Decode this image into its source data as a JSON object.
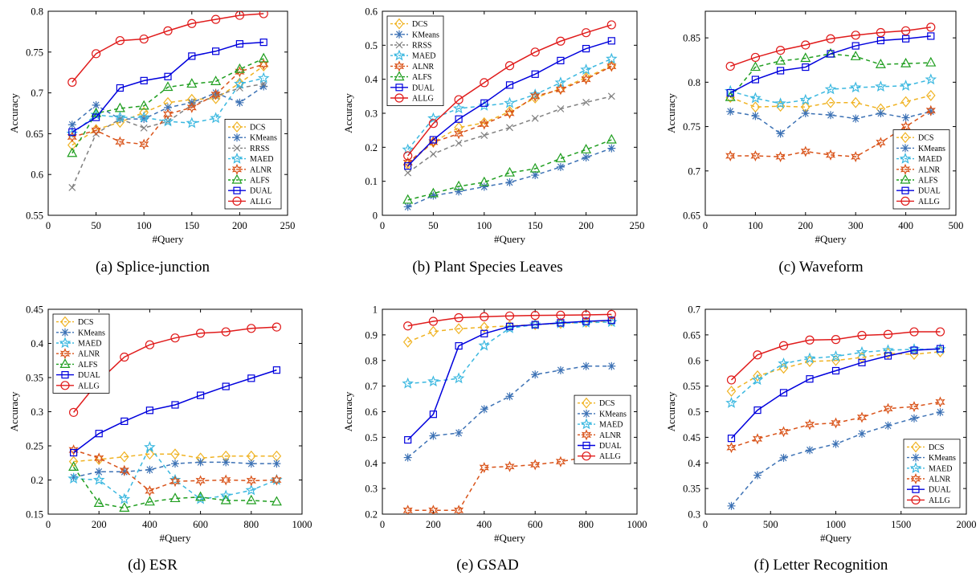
{
  "styles": {
    "DCS": {
      "color": "#f0b323",
      "marker": "diamond",
      "dash": "5,4"
    },
    "KMeans": {
      "color": "#3d72b5",
      "marker": "asterisk",
      "dash": "5,4"
    },
    "RRSS": {
      "color": "#808080",
      "marker": "x",
      "dash": "5,4"
    },
    "MAED": {
      "color": "#3bb8e0",
      "marker": "star",
      "dash": "5,4"
    },
    "ALNR": {
      "color": "#d95319",
      "marker": "hexstar",
      "dash": "5,4"
    },
    "ALFS": {
      "color": "#1f9e1f",
      "marker": "triangle",
      "dash": "5,4"
    },
    "DUAL": {
      "color": "#0000dd",
      "marker": "square",
      "dash": ""
    },
    "ALLG": {
      "color": "#e01b1b",
      "marker": "circle",
      "dash": ""
    }
  },
  "chart_data": [
    {
      "id": "a",
      "type": "line",
      "caption": "(a)  Splice-junction",
      "xlabel": "#Query",
      "ylabel": "Accuracy",
      "xlim": [
        0,
        250
      ],
      "ylim": [
        0.55,
        0.8
      ],
      "xticks": [
        0,
        50,
        100,
        150,
        200,
        250
      ],
      "xtick_labels": [
        "0",
        "50",
        "100",
        "150",
        "200",
        "250"
      ],
      "yticks": [
        0.55,
        0.6,
        0.65,
        0.7,
        0.75,
        0.8
      ],
      "ytick_labels": [
        "0.55",
        "0.6",
        "0.65",
        "0.7",
        "0.75",
        "0.8"
      ],
      "legend_position": "bottom-right",
      "x": [
        25,
        50,
        75,
        100,
        125,
        150,
        175,
        200,
        225
      ],
      "series": [
        {
          "name": "DCS",
          "values": [
            0.636,
            0.655,
            0.664,
            0.676,
            0.688,
            0.692,
            0.693,
            0.712,
            0.733
          ]
        },
        {
          "name": "KMeans",
          "values": [
            0.661,
            0.685,
            0.668,
            0.668,
            0.682,
            0.688,
            0.7,
            0.688,
            0.708
          ]
        },
        {
          "name": "RRSS",
          "values": [
            0.584,
            0.65,
            0.668,
            0.657,
            0.665,
            0.685,
            0.696,
            0.706,
            0.711
          ]
        },
        {
          "name": "MAED",
          "values": [
            0.65,
            0.673,
            0.67,
            0.67,
            0.665,
            0.663,
            0.669,
            0.711,
            0.718
          ]
        },
        {
          "name": "ALNR",
          "values": [
            0.646,
            0.654,
            0.64,
            0.637,
            0.674,
            0.682,
            0.698,
            0.726,
            0.735
          ]
        },
        {
          "name": "ALFS",
          "values": [
            0.626,
            0.675,
            0.681,
            0.684,
            0.707,
            0.711,
            0.714,
            0.729,
            0.742
          ]
        },
        {
          "name": "DUAL",
          "values": [
            0.652,
            0.67,
            0.706,
            0.715,
            0.72,
            0.745,
            0.751,
            0.76,
            0.762
          ]
        },
        {
          "name": "ALLG",
          "values": [
            0.713,
            0.748,
            0.764,
            0.766,
            0.776,
            0.785,
            0.79,
            0.795,
            0.797
          ]
        }
      ]
    },
    {
      "id": "b",
      "type": "line",
      "caption": "(b)  Plant Species Leaves",
      "xlabel": "#Query",
      "ylabel": "Accuracy",
      "xlim": [
        0,
        250
      ],
      "ylim": [
        0,
        0.6
      ],
      "xticks": [
        0,
        50,
        100,
        150,
        200,
        250
      ],
      "xtick_labels": [
        "0",
        "50",
        "100",
        "150",
        "200",
        "250"
      ],
      "yticks": [
        0,
        0.1,
        0.2,
        0.3,
        0.4,
        0.5,
        0.6
      ],
      "ytick_labels": [
        "0",
        "0.1",
        "0.2",
        "0.3",
        "0.4",
        "0.5",
        "0.6"
      ],
      "legend_position": "top-left",
      "x": [
        25,
        50,
        75,
        100,
        125,
        150,
        175,
        200,
        225
      ],
      "series": [
        {
          "name": "DCS",
          "values": [
            0.15,
            0.215,
            0.258,
            0.272,
            0.305,
            0.345,
            0.372,
            0.405,
            0.44
          ]
        },
        {
          "name": "KMeans",
          "values": [
            0.025,
            0.058,
            0.07,
            0.084,
            0.097,
            0.118,
            0.142,
            0.17,
            0.197
          ]
        },
        {
          "name": "RRSS",
          "values": [
            0.125,
            0.18,
            0.212,
            0.235,
            0.258,
            0.285,
            0.313,
            0.332,
            0.35
          ]
        },
        {
          "name": "MAED",
          "values": [
            0.193,
            0.285,
            0.314,
            0.322,
            0.33,
            0.355,
            0.39,
            0.428,
            0.46
          ]
        },
        {
          "name": "ALNR",
          "values": [
            0.155,
            0.215,
            0.24,
            0.268,
            0.3,
            0.35,
            0.37,
            0.4,
            0.438
          ]
        },
        {
          "name": "ALFS",
          "values": [
            0.045,
            0.064,
            0.085,
            0.097,
            0.125,
            0.137,
            0.167,
            0.193,
            0.222
          ]
        },
        {
          "name": "DUAL",
          "values": [
            0.145,
            0.222,
            0.283,
            0.33,
            0.383,
            0.415,
            0.455,
            0.49,
            0.513
          ]
        },
        {
          "name": "ALLG",
          "values": [
            0.175,
            0.27,
            0.34,
            0.39,
            0.44,
            0.48,
            0.512,
            0.537,
            0.56
          ]
        }
      ]
    },
    {
      "id": "c",
      "type": "line",
      "caption": "(c)  Waveform",
      "xlabel": "#Query",
      "ylabel": "Accuracy",
      "xlim": [
        0,
        500
      ],
      "ylim": [
        0.65,
        0.88
      ],
      "xticks": [
        0,
        100,
        200,
        300,
        400,
        500
      ],
      "xtick_labels": [
        "0",
        "100",
        "200",
        "300",
        "400",
        "500"
      ],
      "yticks": [
        0.65,
        0.7,
        0.75,
        0.8,
        0.85
      ],
      "ytick_labels": [
        "0.65",
        "0.7",
        "0.75",
        "0.8",
        "0.85"
      ],
      "legend_position": "bottom-right",
      "x": [
        50,
        100,
        150,
        200,
        250,
        300,
        350,
        400,
        450
      ],
      "series": [
        {
          "name": "DCS",
          "values": [
            0.783,
            0.772,
            0.773,
            0.772,
            0.777,
            0.777,
            0.77,
            0.778,
            0.785
          ]
        },
        {
          "name": "KMeans",
          "values": [
            0.767,
            0.762,
            0.742,
            0.765,
            0.763,
            0.759,
            0.765,
            0.76,
            0.767
          ]
        },
        {
          "name": "MAED",
          "values": [
            0.79,
            0.782,
            0.776,
            0.78,
            0.792,
            0.794,
            0.795,
            0.796,
            0.803
          ]
        },
        {
          "name": "ALNR",
          "values": [
            0.717,
            0.717,
            0.716,
            0.722,
            0.718,
            0.716,
            0.732,
            0.75,
            0.768
          ]
        },
        {
          "name": "ALFS",
          "values": [
            0.783,
            0.817,
            0.824,
            0.827,
            0.832,
            0.829,
            0.82,
            0.821,
            0.822
          ]
        },
        {
          "name": "DUAL",
          "values": [
            0.788,
            0.803,
            0.813,
            0.817,
            0.832,
            0.841,
            0.847,
            0.849,
            0.852
          ]
        },
        {
          "name": "ALLG",
          "values": [
            0.818,
            0.828,
            0.836,
            0.842,
            0.849,
            0.853,
            0.856,
            0.858,
            0.862
          ]
        }
      ]
    },
    {
      "id": "d",
      "type": "line",
      "caption": "(d)  ESR",
      "xlabel": "#Query",
      "ylabel": "Accuracy",
      "xlim": [
        0,
        1000
      ],
      "ylim": [
        0.15,
        0.45
      ],
      "xticks": [
        0,
        200,
        400,
        600,
        800,
        1000
      ],
      "xtick_labels": [
        "0",
        "200",
        "400",
        "600",
        "800",
        "1000"
      ],
      "yticks": [
        0.15,
        0.2,
        0.25,
        0.3,
        0.35,
        0.4,
        0.45
      ],
      "ytick_labels": [
        "0.15",
        "0.2",
        "0.25",
        "0.3",
        "0.35",
        "0.4",
        "0.45"
      ],
      "legend_position": "top-left",
      "x": [
        100,
        200,
        300,
        400,
        500,
        600,
        700,
        800,
        900
      ],
      "series": [
        {
          "name": "DCS",
          "values": [
            0.227,
            0.23,
            0.234,
            0.238,
            0.238,
            0.232,
            0.235,
            0.235,
            0.235
          ]
        },
        {
          "name": "KMeans",
          "values": [
            0.204,
            0.212,
            0.212,
            0.215,
            0.224,
            0.226,
            0.226,
            0.224,
            0.224
          ]
        },
        {
          "name": "MAED",
          "values": [
            0.202,
            0.2,
            0.172,
            0.248,
            0.2,
            0.172,
            0.177,
            0.185,
            0.2
          ]
        },
        {
          "name": "ALNR",
          "values": [
            0.244,
            0.232,
            0.214,
            0.184,
            0.198,
            0.199,
            0.2,
            0.199,
            0.2
          ]
        },
        {
          "name": "ALFS",
          "values": [
            0.219,
            0.166,
            0.159,
            0.168,
            0.173,
            0.175,
            0.17,
            0.17,
            0.168
          ]
        },
        {
          "name": "DUAL",
          "values": [
            0.24,
            0.268,
            0.286,
            0.302,
            0.31,
            0.324,
            0.337,
            0.349,
            0.361
          ]
        },
        {
          "name": "ALLG",
          "values": [
            0.299,
            0.345,
            0.38,
            0.398,
            0.408,
            0.415,
            0.417,
            0.422,
            0.424
          ]
        }
      ]
    },
    {
      "id": "e",
      "type": "line",
      "caption": "(e)  GSAD",
      "xlabel": "#Query",
      "ylabel": "Accuracy",
      "xlim": [
        0,
        1000
      ],
      "ylim": [
        0.2,
        1.0
      ],
      "xticks": [
        0,
        200,
        400,
        600,
        800,
        1000
      ],
      "xtick_labels": [
        "0",
        "200",
        "400",
        "600",
        "800",
        "1000"
      ],
      "yticks": [
        0.2,
        0.3,
        0.4,
        0.5,
        0.6,
        0.7,
        0.8,
        0.9,
        1.0
      ],
      "ytick_labels": [
        "0.2",
        "0.3",
        "0.4",
        "0.5",
        "0.6",
        "0.7",
        "0.8",
        "0.9",
        "1"
      ],
      "legend_position": "mid-right",
      "x": [
        100,
        200,
        300,
        400,
        500,
        600,
        700,
        800,
        900
      ],
      "series": [
        {
          "name": "DCS",
          "values": [
            0.872,
            0.913,
            0.924,
            0.93,
            0.935,
            0.94,
            0.945,
            0.95,
            0.955
          ]
        },
        {
          "name": "KMeans",
          "values": [
            0.421,
            0.506,
            0.517,
            0.61,
            0.66,
            0.745,
            0.762,
            0.778,
            0.778
          ]
        },
        {
          "name": "MAED",
          "values": [
            0.71,
            0.718,
            0.73,
            0.858,
            0.926,
            0.94,
            0.945,
            0.948,
            0.95
          ]
        },
        {
          "name": "ALNR",
          "values": [
            0.215,
            0.215,
            0.215,
            0.382,
            0.386,
            0.393,
            0.405,
            0.423,
            0.43
          ]
        },
        {
          "name": "DUAL",
          "values": [
            0.49,
            0.59,
            0.857,
            0.905,
            0.933,
            0.94,
            0.947,
            0.953,
            0.957
          ]
        },
        {
          "name": "ALLG",
          "values": [
            0.935,
            0.953,
            0.967,
            0.971,
            0.974,
            0.976,
            0.977,
            0.978,
            0.98
          ]
        }
      ]
    },
    {
      "id": "f",
      "type": "line",
      "caption": "(f)  Letter Recognition",
      "xlabel": "#Query",
      "ylabel": "Accuracy",
      "xlim": [
        0,
        2000
      ],
      "ylim": [
        0.3,
        0.7
      ],
      "xticks": [
        0,
        500,
        1000,
        1500,
        2000
      ],
      "xtick_labels": [
        "0",
        "500",
        "1000",
        "1500",
        "2000"
      ],
      "yticks": [
        0.3,
        0.35,
        0.4,
        0.45,
        0.5,
        0.55,
        0.6,
        0.65,
        0.7
      ],
      "ytick_labels": [
        "0.3",
        "0.35",
        "0.4",
        "0.45",
        "0.5",
        "0.55",
        "0.6",
        "0.65",
        "0.7"
      ],
      "legend_position": "bottom-right",
      "x": [
        200,
        400,
        600,
        800,
        1000,
        1200,
        1400,
        1600,
        1800
      ],
      "series": [
        {
          "name": "DCS",
          "values": [
            0.54,
            0.57,
            0.585,
            0.598,
            0.6,
            0.606,
            0.614,
            0.612,
            0.617
          ]
        },
        {
          "name": "KMeans",
          "values": [
            0.316,
            0.376,
            0.41,
            0.425,
            0.437,
            0.457,
            0.473,
            0.487,
            0.499
          ]
        },
        {
          "name": "MAED",
          "values": [
            0.517,
            0.562,
            0.594,
            0.604,
            0.608,
            0.616,
            0.62,
            0.622,
            0.622
          ]
        },
        {
          "name": "ALNR",
          "values": [
            0.43,
            0.447,
            0.461,
            0.475,
            0.478,
            0.489,
            0.506,
            0.51,
            0.519
          ]
        },
        {
          "name": "DUAL",
          "values": [
            0.448,
            0.503,
            0.537,
            0.564,
            0.58,
            0.596,
            0.609,
            0.62,
            0.623
          ]
        },
        {
          "name": "ALLG",
          "values": [
            0.562,
            0.611,
            0.629,
            0.64,
            0.641,
            0.649,
            0.651,
            0.656,
            0.656
          ]
        }
      ]
    }
  ]
}
